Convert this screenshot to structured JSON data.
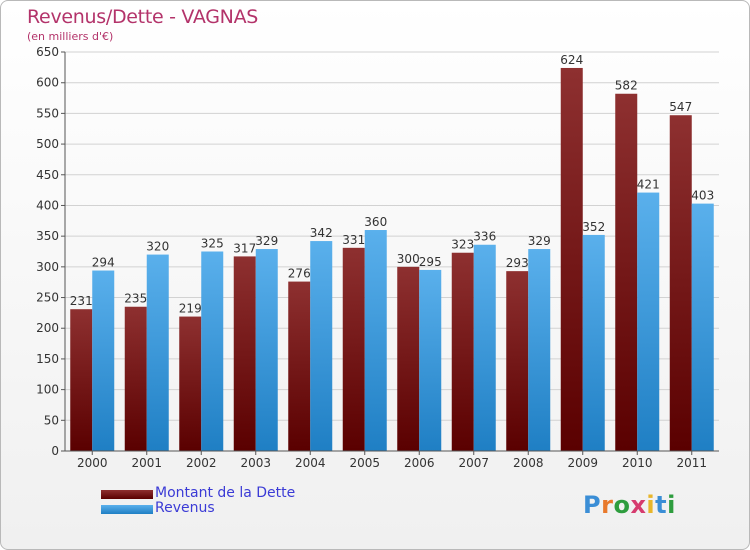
{
  "title": "Revenus/Dette - VAGNAS",
  "subtitle": "(en milliers d'€)",
  "colors": {
    "debt": "#8b1a1a",
    "revenue": "#3fa3e6",
    "title": "#b3336a",
    "legend_text": "#3b3bd6"
  },
  "legend": {
    "debt_label": "Montant de la Dette",
    "revenue_label": "Revenus"
  },
  "logo": {
    "text": "Proxiti"
  },
  "chart_data": {
    "type": "bar",
    "categories": [
      "2000",
      "2001",
      "2002",
      "2003",
      "2004",
      "2005",
      "2006",
      "2007",
      "2008",
      "2009",
      "2010",
      "2011"
    ],
    "series": [
      {
        "name": "Montant de la Dette",
        "values": [
          231,
          235,
          219,
          317,
          276,
          331,
          300,
          323,
          293,
          624,
          582,
          547
        ]
      },
      {
        "name": "Revenus",
        "values": [
          294,
          320,
          325,
          329,
          342,
          360,
          295,
          336,
          329,
          352,
          421,
          403
        ]
      }
    ],
    "title": "Revenus/Dette - VAGNAS",
    "xlabel": "",
    "ylabel": "(en milliers d'€)",
    "ylim": [
      0,
      650
    ],
    "yticks": [
      0,
      50,
      100,
      150,
      200,
      250,
      300,
      350,
      400,
      450,
      500,
      550,
      600,
      650
    ],
    "grid": true,
    "legend_position": "bottom-left"
  }
}
